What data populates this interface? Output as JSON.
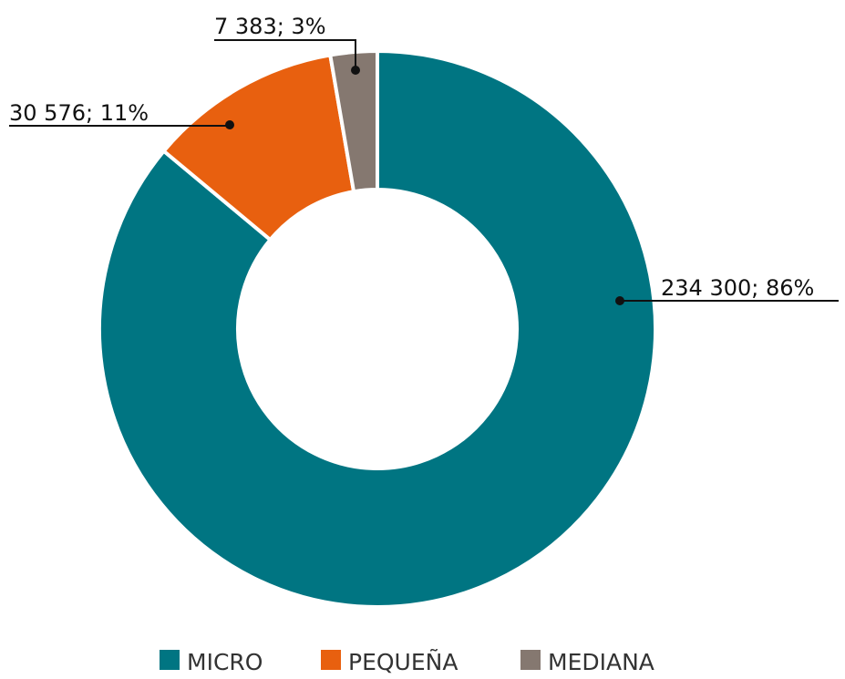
{
  "chart_data": {
    "type": "donut",
    "categories": [
      "MICRO",
      "PEQUEÑA",
      "MEDIANA"
    ],
    "values": [
      234300,
      30576,
      7383
    ],
    "value_labels": [
      "234 300; 86%",
      "30 576; 11%",
      "7 383; 3%"
    ],
    "colors": [
      "#007582",
      "#e8600f",
      "#857870"
    ]
  }
}
